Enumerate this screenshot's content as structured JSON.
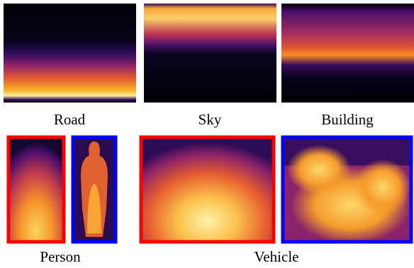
{
  "panels": {
    "road": {
      "label": "Road"
    },
    "sky": {
      "label": "Sky"
    },
    "building": {
      "label": "Building"
    },
    "person": {
      "label": "Person"
    },
    "vehicle": {
      "label": "Vehicle"
    }
  }
}
